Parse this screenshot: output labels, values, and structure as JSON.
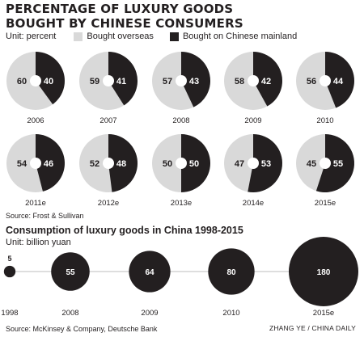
{
  "title": "PERCENTAGE OF LUXURY GOODS BOUGHT BY CHINESE CONSUMERS",
  "legend": {
    "unit": "Unit: percent",
    "overseas_label": "Bought overseas",
    "mainland_label": "Bought on Chinese mainland"
  },
  "colors": {
    "overseas": "#d9d9d9",
    "mainland": "#231f20",
    "text": "#231f20"
  },
  "source1": "Source: Frost & Sullivan",
  "consumption": {
    "title": "Consumption of luxury goods in China 1998-2015",
    "unit": "Unit: billion yuan"
  },
  "source2": "Source: McKinsey & Company, Deutsche Bank",
  "credit": "ZHANG YE / CHINA DAILY",
  "chart_data": [
    {
      "type": "pie",
      "title": "PERCENTAGE OF LUXURY GOODS BOUGHT BY CHINESE CONSUMERS",
      "unit": "percent",
      "series_names": [
        "Bought overseas",
        "Bought on Chinese mainland"
      ],
      "categories": [
        "2006",
        "2007",
        "2008",
        "2009",
        "2010",
        "2011e",
        "2012e",
        "2013e",
        "2014e",
        "2015e"
      ],
      "overseas": [
        60,
        59,
        57,
        58,
        56,
        54,
        52,
        50,
        47,
        45
      ],
      "mainland": [
        40,
        41,
        43,
        42,
        44,
        46,
        48,
        50,
        53,
        55
      ]
    },
    {
      "type": "scatter",
      "title": "Consumption of luxury goods in China 1998-2015",
      "unit": "billion yuan",
      "categories": [
        "1998",
        "2008",
        "2009",
        "2010",
        "2015e"
      ],
      "values": [
        5,
        55,
        64,
        80,
        180
      ]
    }
  ]
}
